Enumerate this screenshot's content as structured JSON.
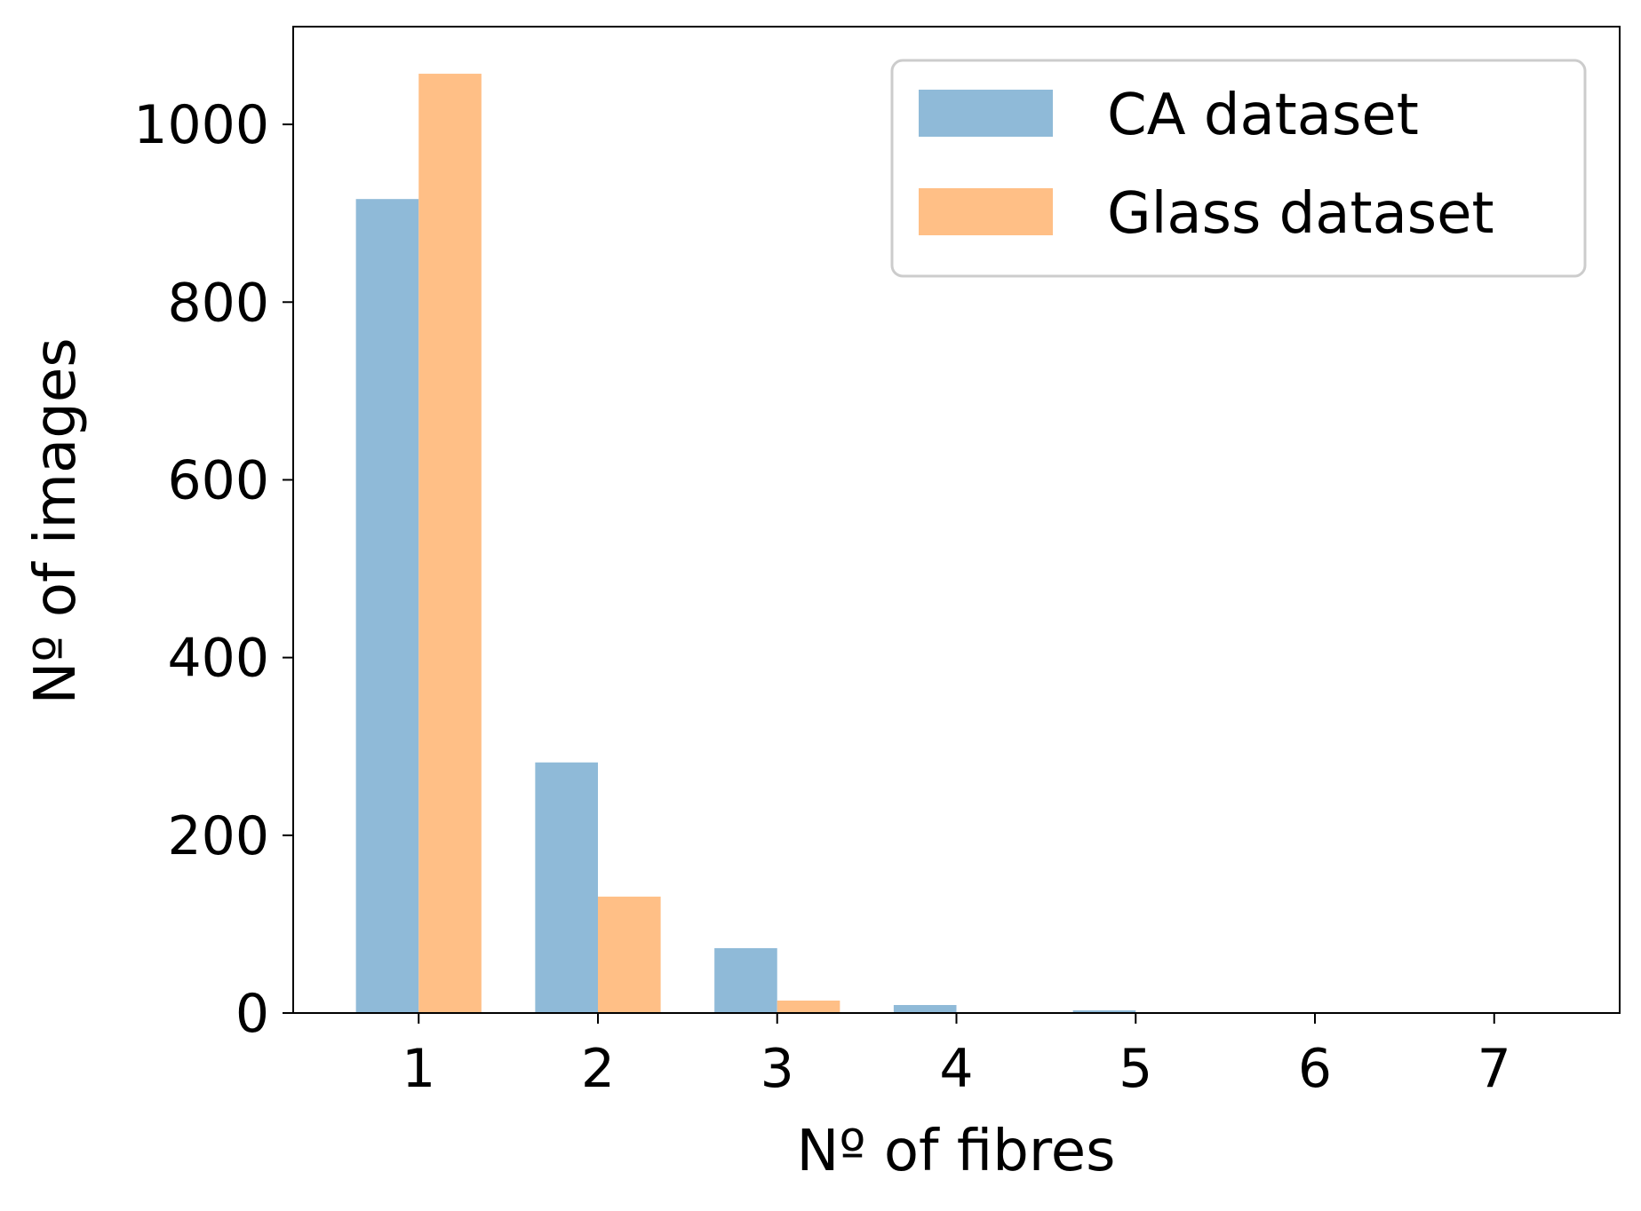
{
  "chart_data": {
    "type": "bar",
    "categories": [
      "1",
      "2",
      "3",
      "4",
      "5",
      "6",
      "7"
    ],
    "series": [
      {
        "name": "CA dataset",
        "values": [
          916,
          282,
          73,
          9,
          3,
          1,
          0
        ],
        "color": "#8fbad8"
      },
      {
        "name": "Glass dataset",
        "values": [
          1057,
          131,
          14,
          1,
          0,
          0,
          0
        ],
        "color": "#ffbf86"
      }
    ],
    "title": "",
    "xlabel": "Nº of fibres",
    "ylabel": "Nº of images",
    "ylim": [
      0,
      1110
    ],
    "yticks": [
      "0",
      "200",
      "400",
      "600",
      "800",
      "1000"
    ],
    "xlim": [
      0.3,
      7.7
    ],
    "grid": false,
    "legend": {
      "position": "top-right"
    }
  }
}
